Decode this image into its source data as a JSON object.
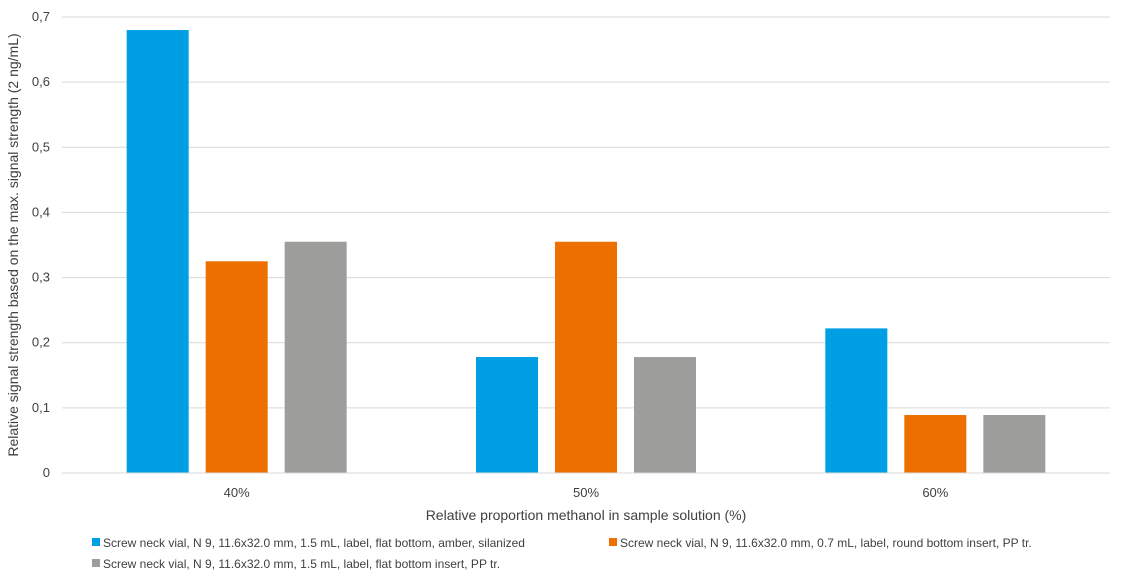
{
  "chart_data": {
    "type": "bar",
    "title": "",
    "xlabel": "Relative proportion methanol in sample solution (%)",
    "ylabel": "Relative signal strength based on the max. signal strength (2 ng/mL)",
    "categories": [
      "40%",
      "50%",
      "60%"
    ],
    "ylim": [
      0,
      0.7
    ],
    "yticks": [
      "0",
      "0,1",
      "0,2",
      "0,3",
      "0,4",
      "0,5",
      "0,6",
      "0,7"
    ],
    "grid": true,
    "legend_position": "bottom",
    "series": [
      {
        "name": "Screw neck vial, N 9, 11.6x32.0 mm, 1.5 mL, label, flat bottom, amber, silanized",
        "color": "#009fe3",
        "values": [
          0.68,
          0.178,
          0.222
        ]
      },
      {
        "name": "Screw neck vial, N 9, 11.6x32.0 mm, 0.7 mL, label, round bottom insert, PP tr.",
        "color": "#ec6f00",
        "values": [
          0.325,
          0.355,
          0.089
        ]
      },
      {
        "name": "Screw neck vial, N 9, 11.6x32.0 mm, 1.5 mL, label, flat bottom insert, PP tr.",
        "color": "#9d9d9c",
        "values": [
          0.355,
          0.178,
          0.089
        ]
      }
    ]
  }
}
